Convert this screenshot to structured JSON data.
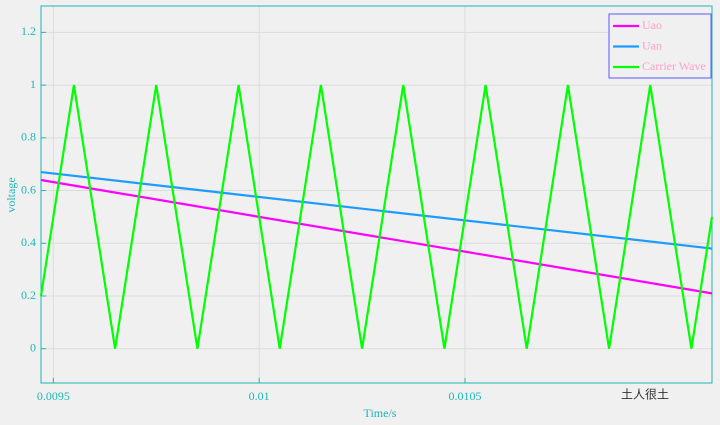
{
  "chart_data": {
    "type": "line",
    "xlabel": "Time/s",
    "ylabel": "voltage",
    "xlim": [
      0.00947,
      0.0111
    ],
    "ylim": [
      -0.13,
      1.3
    ],
    "xticks": [
      0.0095,
      0.01,
      0.0105
    ],
    "yticks": [
      0,
      0.2,
      0.4,
      0.6,
      0.8,
      1,
      1.2
    ],
    "grid": true,
    "legend_position": "upper-right",
    "series": [
      {
        "name": "Uao",
        "color": "#ff00ff",
        "x": [
          0.00947,
          0.0111
        ],
        "values": [
          0.64,
          0.21
        ]
      },
      {
        "name": "Uan",
        "color": "#1e9bff",
        "x": [
          0.00947,
          0.0111
        ],
        "values": [
          0.67,
          0.38
        ]
      },
      {
        "name": "Carrier Wave",
        "color": "#00ff00",
        "x": [
          0.00947,
          0.00955,
          0.00965,
          0.00975,
          0.00985,
          0.00995,
          0.01005,
          0.01015,
          0.01025,
          0.01035,
          0.01045,
          0.01055,
          0.01065,
          0.01075,
          0.01085,
          0.01095,
          0.01105,
          0.0111
        ],
        "values": [
          0.2,
          1,
          0,
          1,
          0,
          1,
          0,
          1,
          0,
          1,
          0,
          1,
          0,
          1,
          0,
          1,
          0,
          0.5
        ]
      }
    ],
    "watermark": "土人很土"
  }
}
